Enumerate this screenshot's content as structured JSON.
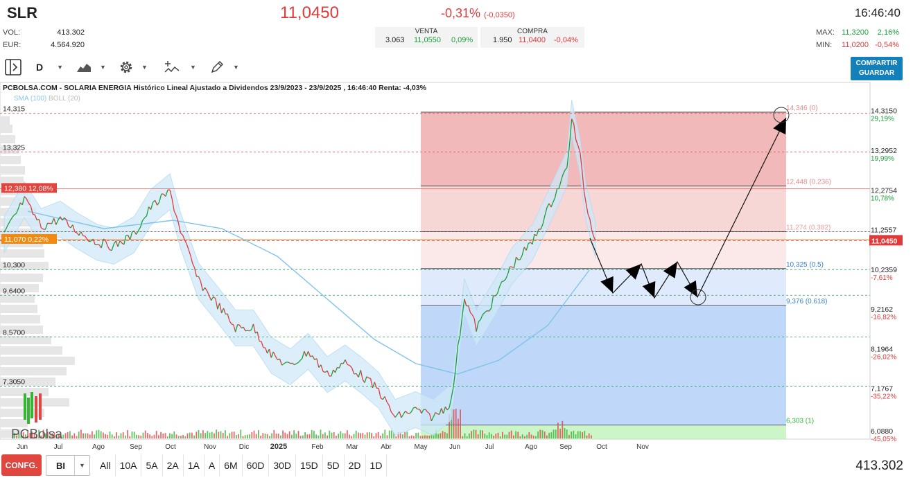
{
  "header": {
    "ticker": "SLR",
    "price": "11,0450",
    "change_pct": "-0,31%",
    "change_abs": "(-0,0350)",
    "time": "16:46:40",
    "vol_label": "VOL:",
    "vol_value": "413.302",
    "eur_label": "EUR:",
    "eur_value": "4.564.920",
    "venta": {
      "label": "VENTA",
      "qty": "3.063",
      "price": "11,0550",
      "pct": "0,09%"
    },
    "compra": {
      "label": "COMPRA",
      "qty": "1.950",
      "price": "11,0400",
      "pct": "-0,04%"
    },
    "max": {
      "label": "MAX:",
      "price": "11,3200",
      "pct": "2,16%"
    },
    "min": {
      "label": "MIN:",
      "price": "11,0200",
      "pct": "-0,54%"
    }
  },
  "toolbar": {
    "period": "D",
    "share_line1": "COMPARTIR",
    "share_line2": "GUARDAR"
  },
  "chart_title": "PCBOLSA.COM - SOLARIA ENERGIA Histórico Lineal Ajustado a Dividendos 23/9/2023 - 23/9/2025 , 16:46:40 Renta: -4,03%",
  "indicators": {
    "sma": "SMA (100)",
    "boll": "BOLL (20)"
  },
  "logo_text": "PCBolsa",
  "colors": {
    "up": "#1a9e3a",
    "down": "#e03a3a",
    "sma": "#7fc3ea",
    "boll_fill": "#cfe8f8",
    "fib_red": "#e99393",
    "fib_blue": "#7fb0f2",
    "fib_green": "#b8f2b0"
  },
  "chart_data": {
    "type": "line",
    "x_tick_labels": [
      "Jun",
      "Jul",
      "Ago",
      "Sep",
      "Oct",
      "Nov",
      "Dic",
      "2025",
      "Feb",
      "Mar",
      "Abr",
      "May",
      "Jun",
      "Jul",
      "Ago",
      "Sep",
      "Oct",
      "Nov"
    ],
    "left_axis_labels": [
      "14,315",
      "13,325",
      "12,380",
      "10,300",
      "9,6400",
      "8,5700",
      "7,3050"
    ],
    "right_axis": [
      {
        "price": "14,3150",
        "pct": "29,19%"
      },
      {
        "price": "13,2952",
        "pct": "19,99%"
      },
      {
        "price": "12,2754",
        "pct": "10,78%"
      },
      {
        "price": "11,2557",
        "pct": "1,58%"
      },
      {
        "price": "10,2359",
        "pct": "-7,61%"
      },
      {
        "price": "9,2162",
        "pct": "-16,82%"
      },
      {
        "price": "8,1964",
        "pct": "-26,02%"
      },
      {
        "price": "7,1767",
        "pct": "-35,22%"
      },
      {
        "price": "6,0880",
        "pct": "-45,05%"
      }
    ],
    "last_price_label": "11,0450",
    "left_badges": [
      {
        "text": "12,380  12,08%",
        "price": 12.38,
        "color": "#e0453e"
      },
      {
        "text": "11,070  0,22%",
        "price": 11.07,
        "color": "#f08a12"
      }
    ],
    "fibonacci": [
      {
        "label": "14,346 (0)",
        "price": 14.346
      },
      {
        "label": "12,448 (0.236)",
        "price": 12.448
      },
      {
        "label": "11,274 (0.382)",
        "price": 11.274
      },
      {
        "label": "10,325 (0.5)",
        "price": 10.325
      },
      {
        "label": "9,376 (0.618)",
        "price": 9.376
      },
      {
        "label": "6,303 (1)",
        "price": 6.303
      }
    ],
    "close_series_approx": [
      {
        "x": "2024-05-15",
        "y": 11.2
      },
      {
        "x": "2024-06-01",
        "y": 12.1
      },
      {
        "x": "2024-06-15",
        "y": 11.4
      },
      {
        "x": "2024-07-01",
        "y": 11.6
      },
      {
        "x": "2024-07-15",
        "y": 11.3
      },
      {
        "x": "2024-08-01",
        "y": 11.0
      },
      {
        "x": "2024-08-15",
        "y": 10.9
      },
      {
        "x": "2024-09-01",
        "y": 11.2
      },
      {
        "x": "2024-09-15",
        "y": 11.9
      },
      {
        "x": "2024-10-01",
        "y": 12.3
      },
      {
        "x": "2024-10-10",
        "y": 11.3
      },
      {
        "x": "2024-10-25",
        "y": 10.0
      },
      {
        "x": "2024-11-10",
        "y": 9.4
      },
      {
        "x": "2024-11-25",
        "y": 8.8
      },
      {
        "x": "2024-12-10",
        "y": 8.8
      },
      {
        "x": "2024-12-25",
        "y": 8.1
      },
      {
        "x": "2025-01-10",
        "y": 7.8
      },
      {
        "x": "2025-01-25",
        "y": 8.2
      },
      {
        "x": "2025-02-10",
        "y": 7.6
      },
      {
        "x": "2025-02-25",
        "y": 7.9
      },
      {
        "x": "2025-03-10",
        "y": 7.6
      },
      {
        "x": "2025-03-25",
        "y": 7.2
      },
      {
        "x": "2025-04-08",
        "y": 6.5
      },
      {
        "x": "2025-04-25",
        "y": 6.7
      },
      {
        "x": "2025-05-10",
        "y": 6.5
      },
      {
        "x": "2025-05-25",
        "y": 6.9
      },
      {
        "x": "2025-06-05",
        "y": 9.6
      },
      {
        "x": "2025-06-15",
        "y": 8.8
      },
      {
        "x": "2025-07-01",
        "y": 9.6
      },
      {
        "x": "2025-07-15",
        "y": 10.4
      },
      {
        "x": "2025-08-01",
        "y": 11.0
      },
      {
        "x": "2025-08-15",
        "y": 11.9
      },
      {
        "x": "2025-08-30",
        "y": 12.9
      },
      {
        "x": "2025-09-03",
        "y": 14.2
      },
      {
        "x": "2025-09-10",
        "y": 13.2
      },
      {
        "x": "2025-09-15",
        "y": 12.0
      },
      {
        "x": "2025-09-23",
        "y": 11.045
      }
    ],
    "ylim": [
      6.0,
      14.5
    ]
  },
  "bottom": {
    "conf": "CONFG.",
    "mode": "BI",
    "periods": [
      "All",
      "10A",
      "5A",
      "2A",
      "1A",
      "A",
      "6M",
      "60D",
      "30D",
      "15D",
      "5D",
      "2D",
      "1D"
    ],
    "volume": "413.302"
  }
}
